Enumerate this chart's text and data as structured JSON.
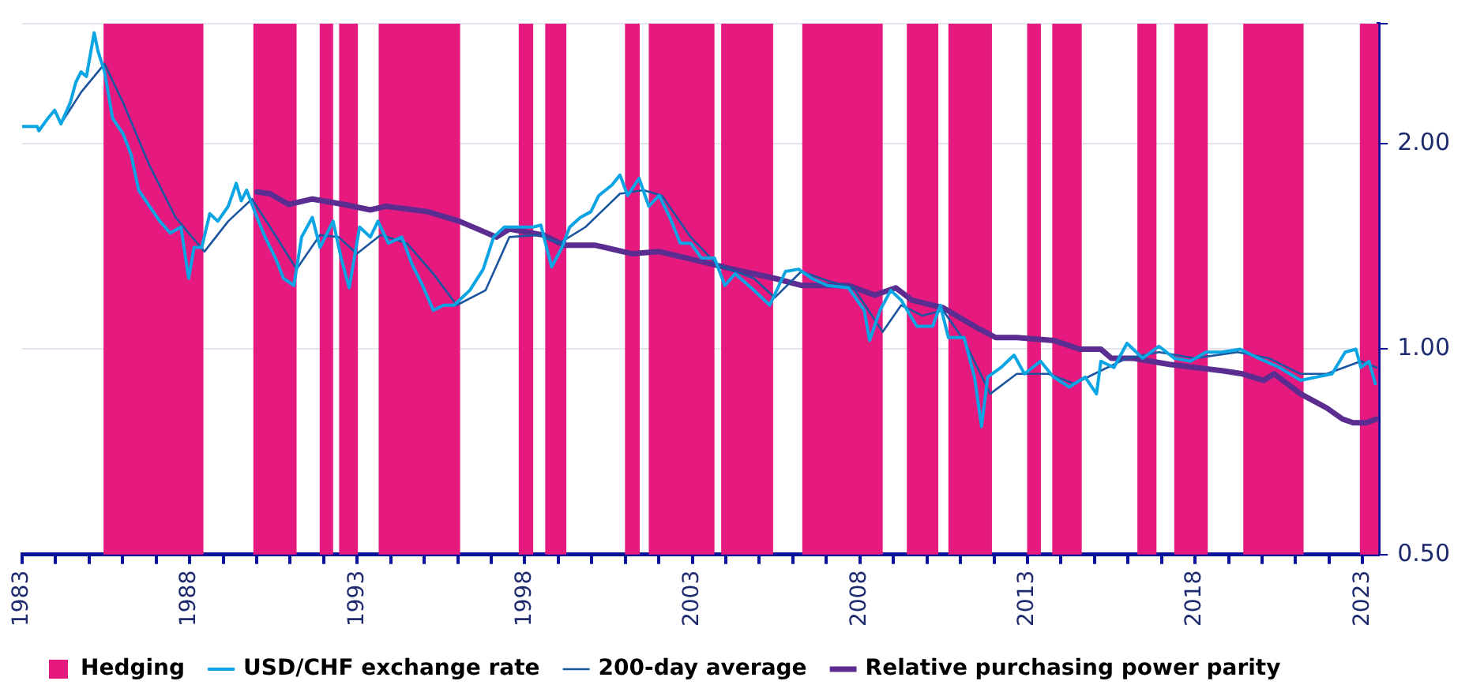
{
  "chart_data": {
    "type": "line",
    "log": "y",
    "grid": "y",
    "legend": "bottom",
    "xlim": [
      1983,
      2023.47
    ],
    "ylim": [
      0.5,
      3.0
    ],
    "xticks": [
      1983,
      {
        "value": 1984,
        "label": null
      },
      {
        "value": 1985,
        "label": null
      },
      {
        "value": 1986,
        "label": null
      },
      {
        "value": 1987,
        "label": null
      },
      1988,
      {
        "value": 1989,
        "label": null
      },
      {
        "value": 1990,
        "label": null
      },
      {
        "value": 1991,
        "label": null
      },
      {
        "value": 1992,
        "label": null
      },
      1993,
      {
        "value": 1994,
        "label": null
      },
      {
        "value": 1995,
        "label": null
      },
      {
        "value": 1996,
        "label": null
      },
      {
        "value": 1997,
        "label": null
      },
      1998,
      {
        "value": 1999,
        "label": null
      },
      {
        "value": 2000,
        "label": null
      },
      {
        "value": 2001,
        "label": null
      },
      {
        "value": 2002,
        "label": null
      },
      2003,
      {
        "value": 2004,
        "label": null
      },
      {
        "value": 2005,
        "label": null
      },
      {
        "value": 2006,
        "label": null
      },
      {
        "value": 2007,
        "label": null
      },
      2008,
      {
        "value": 2009,
        "label": null
      },
      {
        "value": 2010,
        "label": null
      },
      {
        "value": 2011,
        "label": null
      },
      {
        "value": 2012,
        "label": null
      },
      2013,
      {
        "value": 2014,
        "label": null
      },
      {
        "value": 2015,
        "label": null
      },
      {
        "value": 2016,
        "label": null
      },
      {
        "value": 2017,
        "label": null
      },
      2018,
      {
        "value": 2019,
        "label": null
      },
      {
        "value": 2020,
        "label": null
      },
      {
        "value": 2021,
        "label": null
      },
      {
        "value": 2022,
        "label": null
      },
      2023
    ],
    "yticks": [
      {
        "value": 0.5,
        "label": "0.50"
      },
      {
        "value": 1,
        "label": "1.00"
      },
      {
        "value": 2,
        "label": "2.00"
      },
      {
        "value": 3,
        "label": null
      }
    ],
    "bands": [
      {
        "axis": "x",
        "from": 1985.43,
        "to": 1988.41,
        "label": "Hedging",
        "color": "#e6197f"
      },
      {
        "axis": "x",
        "from": 1989.9,
        "to": 1991.19,
        "color": "#e6197f"
      },
      {
        "axis": "x",
        "from": 1991.88,
        "to": 1992.28,
        "color": "#e6197f"
      },
      {
        "axis": "x",
        "from": 1992.46,
        "to": 1993.02,
        "color": "#e6197f"
      },
      {
        "axis": "x",
        "from": 1993.64,
        "to": 1996.07,
        "color": "#e6197f"
      },
      {
        "axis": "x",
        "from": 1997.82,
        "to": 1998.25,
        "color": "#e6197f"
      },
      {
        "axis": "x",
        "from": 1998.61,
        "to": 1999.24,
        "color": "#e6197f"
      },
      {
        "axis": "x",
        "from": 2000.99,
        "to": 2001.43,
        "color": "#e6197f"
      },
      {
        "axis": "x",
        "from": 2001.7,
        "to": 2003.66,
        "color": "#e6197f"
      },
      {
        "axis": "x",
        "from": 2003.86,
        "to": 2005.41,
        "color": "#e6197f"
      },
      {
        "axis": "x",
        "from": 2006.28,
        "to": 2008.68,
        "color": "#e6197f"
      },
      {
        "axis": "x",
        "from": 2009.4,
        "to": 2010.34,
        "color": "#e6197f"
      },
      {
        "axis": "x",
        "from": 2010.64,
        "to": 2011.94,
        "color": "#e6197f"
      },
      {
        "axis": "x",
        "from": 2012.99,
        "to": 2013.4,
        "color": "#e6197f"
      },
      {
        "axis": "x",
        "from": 2013.74,
        "to": 2014.62,
        "color": "#e6197f"
      },
      {
        "axis": "x",
        "from": 2016.28,
        "to": 2016.85,
        "color": "#e6197f"
      },
      {
        "axis": "x",
        "from": 2017.38,
        "to": 2018.38,
        "color": "#e6197f"
      },
      {
        "axis": "x",
        "from": 2019.44,
        "to": 2021.24,
        "color": "#e6197f"
      },
      {
        "axis": "x",
        "from": 2022.92,
        "to": 2023.47,
        "color": "#e6197f"
      }
    ],
    "series": [
      {
        "name": "USD/CHF exchange rate",
        "color": "#0aa5e2",
        "x": [
          1983.0,
          1983.45,
          1983.5,
          1983.74,
          1983.97,
          1984.16,
          1984.44,
          1984.6,
          1984.76,
          1984.92,
          1985.15,
          1985.26,
          1985.46,
          1985.7,
          1986.01,
          1986.25,
          1986.48,
          1986.8,
          1987.11,
          1987.42,
          1987.74,
          1987.97,
          1988.13,
          1988.36,
          1988.6,
          1988.84,
          1989.15,
          1989.39,
          1989.54,
          1989.7,
          1990.01,
          1990.25,
          1990.56,
          1990.8,
          1991.11,
          1991.34,
          1991.66,
          1991.89,
          1992.28,
          1992.52,
          1992.76,
          1993.07,
          1993.39,
          1993.62,
          1993.93,
          1994.33,
          1994.64,
          1994.95,
          1995.27,
          1995.58,
          1995.89,
          1996.36,
          1996.76,
          1997.07,
          1997.39,
          1997.78,
          1998.25,
          1998.48,
          1998.8,
          1999.11,
          1999.34,
          1999.66,
          1999.97,
          2000.21,
          2000.6,
          2000.84,
          2001.07,
          2001.41,
          2001.7,
          2002.01,
          2002.33,
          2002.64,
          2002.95,
          2003.27,
          2003.66,
          2003.97,
          2004.28,
          2004.84,
          2005.31,
          2005.78,
          2006.17,
          2006.56,
          2007.03,
          2007.66,
          2008.13,
          2008.29,
          2008.6,
          2008.92,
          2009.23,
          2009.7,
          2010.17,
          2010.4,
          2010.64,
          2011.11,
          2011.42,
          2011.63,
          2011.81,
          2012.21,
          2012.6,
          2012.91,
          2013.39,
          2013.78,
          2014.25,
          2014.72,
          2015.06,
          2015.19,
          2015.58,
          2015.97,
          2016.44,
          2016.92,
          2017.38,
          2017.86,
          2018.33,
          2018.8,
          2019.35,
          2019.89,
          2020.52,
          2021.15,
          2021.62,
          2022.09,
          2022.48,
          2022.8,
          2022.95,
          2023.19,
          2023.38
        ],
        "values": [
          2.12,
          2.12,
          2.09,
          2.17,
          2.24,
          2.14,
          2.3,
          2.46,
          2.55,
          2.51,
          2.91,
          2.74,
          2.55,
          2.18,
          2.07,
          1.93,
          1.71,
          1.62,
          1.54,
          1.48,
          1.51,
          1.27,
          1.41,
          1.41,
          1.58,
          1.54,
          1.62,
          1.75,
          1.65,
          1.71,
          1.56,
          1.46,
          1.36,
          1.27,
          1.24,
          1.46,
          1.56,
          1.41,
          1.54,
          1.36,
          1.23,
          1.51,
          1.46,
          1.54,
          1.43,
          1.46,
          1.33,
          1.24,
          1.14,
          1.16,
          1.16,
          1.22,
          1.31,
          1.46,
          1.51,
          1.51,
          1.51,
          1.52,
          1.32,
          1.41,
          1.51,
          1.56,
          1.59,
          1.68,
          1.74,
          1.8,
          1.68,
          1.78,
          1.62,
          1.68,
          1.56,
          1.43,
          1.43,
          1.36,
          1.36,
          1.24,
          1.29,
          1.22,
          1.16,
          1.3,
          1.31,
          1.27,
          1.24,
          1.23,
          1.14,
          1.03,
          1.14,
          1.22,
          1.18,
          1.08,
          1.08,
          1.16,
          1.04,
          1.04,
          0.91,
          0.77,
          0.91,
          0.94,
          0.98,
          0.92,
          0.96,
          0.91,
          0.88,
          0.91,
          0.86,
          0.96,
          0.94,
          1.02,
          0.97,
          1.01,
          0.97,
          0.96,
          0.99,
          0.99,
          1.0,
          0.97,
          0.94,
          0.9,
          0.91,
          0.92,
          0.99,
          1.0,
          0.94,
          0.96,
          0.89
        ]
      },
      {
        "name": "200-day average",
        "color": "#1b55a0",
        "x": [
          1984.21,
          1984.76,
          1985.46,
          1986.01,
          1986.8,
          1987.58,
          1988.44,
          1989.15,
          1989.86,
          1990.4,
          1991.19,
          1991.89,
          1992.44,
          1992.99,
          1993.7,
          1994.48,
          1995.27,
          1995.97,
          1996.83,
          1997.54,
          1998.4,
          1999.03,
          1999.81,
          2000.84,
          2001.54,
          2002.09,
          2002.95,
          2003.74,
          2004.84,
          2005.46,
          2006.25,
          2007.03,
          2007.81,
          2008.68,
          2009.23,
          2009.86,
          2010.48,
          2011.11,
          2011.89,
          2012.68,
          2013.62,
          2014.4,
          2015.19,
          2015.97,
          2016.92,
          2018.01,
          2019.27,
          2020.21,
          2021.15,
          2021.93,
          2022.95,
          2023.42
        ],
        "values": [
          2.16,
          2.38,
          2.62,
          2.3,
          1.86,
          1.56,
          1.39,
          1.54,
          1.66,
          1.51,
          1.31,
          1.47,
          1.46,
          1.38,
          1.47,
          1.43,
          1.29,
          1.16,
          1.22,
          1.46,
          1.47,
          1.43,
          1.51,
          1.69,
          1.71,
          1.68,
          1.46,
          1.33,
          1.27,
          1.19,
          1.3,
          1.26,
          1.23,
          1.06,
          1.16,
          1.12,
          1.14,
          1.03,
          0.86,
          0.92,
          0.92,
          0.89,
          0.93,
          0.97,
          0.99,
          0.97,
          0.99,
          0.97,
          0.92,
          0.92,
          0.96,
          0.94
        ]
      },
      {
        "name": "Relative purchasing power parity",
        "color": "#5c2d91",
        "x": [
          1990.01,
          1990.4,
          1990.95,
          1991.66,
          1992.6,
          1993.39,
          1993.86,
          1995.11,
          1996.05,
          1997.15,
          1997.54,
          1998.56,
          1999.18,
          2000.11,
          2001.21,
          2002.01,
          2003.11,
          2004.21,
          2005.46,
          2006.25,
          2007.66,
          2008.44,
          2009.07,
          2009.55,
          2010.48,
          2011.42,
          2012.05,
          2012.68,
          2013.78,
          2014.56,
          2015.19,
          2015.5,
          2016.16,
          2017.23,
          2018.01,
          2018.8,
          2019.42,
          2020.05,
          2020.36,
          2021.15,
          2021.93,
          2022.4,
          2022.72,
          2023.11,
          2023.42
        ],
        "values": [
          1.7,
          1.69,
          1.63,
          1.66,
          1.63,
          1.6,
          1.62,
          1.59,
          1.54,
          1.46,
          1.5,
          1.47,
          1.42,
          1.42,
          1.38,
          1.39,
          1.35,
          1.31,
          1.27,
          1.24,
          1.24,
          1.2,
          1.23,
          1.18,
          1.15,
          1.08,
          1.04,
          1.04,
          1.03,
          1.0,
          1.0,
          0.97,
          0.97,
          0.95,
          0.94,
          0.93,
          0.92,
          0.9,
          0.92,
          0.86,
          0.82,
          0.79,
          0.78,
          0.78,
          0.79
        ]
      }
    ]
  }
}
